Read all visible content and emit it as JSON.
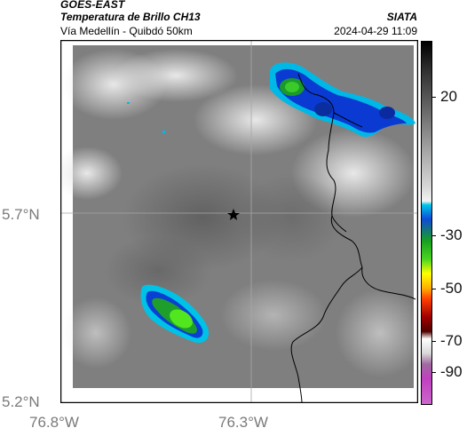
{
  "header": {
    "satellite": "GOES-EAST",
    "product": "Temperatura de Brillo CH13",
    "region": "Vía Medellín - Quibdó 50km",
    "agency": "SIATA",
    "timestamp": "2024-04-29 11:09"
  },
  "axes": {
    "lat_labels": [
      "5.7°N",
      "5.2°N"
    ],
    "lon_labels": [
      "76.8°W",
      "76.3°W"
    ]
  },
  "colorbar": {
    "labels": [
      "20",
      "-30",
      "-50",
      "-70",
      "-90"
    ]
  },
  "map": {
    "marker": "star",
    "background_gray": "#7c7c7c",
    "cold_cloud_colors": [
      "#00c8e8",
      "#0040d8",
      "#20c020",
      "#60ff20"
    ]
  }
}
